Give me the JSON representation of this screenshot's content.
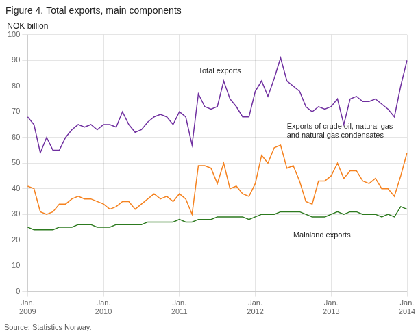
{
  "chart_data": {
    "type": "line",
    "title": "Figure 4. Total exports, main components",
    "ylabel": "NOK billion",
    "source": "Source: Statistics Norway.",
    "categories": [
      "Jan.\n2009",
      null,
      null,
      null,
      null,
      null,
      null,
      null,
      null,
      null,
      null,
      null,
      "Jan.\n2010",
      null,
      null,
      null,
      null,
      null,
      null,
      null,
      null,
      null,
      null,
      null,
      "Jan.\n2011",
      null,
      null,
      null,
      null,
      null,
      null,
      null,
      null,
      null,
      null,
      null,
      "Jan.\n2012",
      null,
      null,
      null,
      null,
      null,
      null,
      null,
      null,
      null,
      null,
      null,
      "Jan.\n2013",
      null,
      null,
      null,
      null,
      null,
      null,
      null,
      null,
      null,
      null,
      null,
      "Jan.\n2014"
    ],
    "series": [
      {
        "color": "#7030A0",
        "values": [
          68,
          65,
          54,
          60,
          55,
          55,
          60,
          63,
          65,
          64,
          65,
          63,
          65,
          65,
          64,
          70,
          65,
          62,
          63,
          66,
          68,
          69,
          68,
          65,
          70,
          68,
          57,
          77,
          72,
          71,
          72,
          82,
          75,
          72,
          68,
          68,
          78,
          82,
          76,
          83,
          91,
          82,
          80,
          78,
          72,
          70,
          72,
          71,
          72,
          75,
          65,
          75,
          76,
          74,
          74,
          75,
          73,
          71,
          68,
          80,
          90
        ]
      },
      {
        "color": "#F5821F",
        "values": [
          41,
          40,
          31,
          30,
          31,
          34,
          34,
          36,
          37,
          36,
          36,
          35,
          34,
          32,
          33,
          35,
          35,
          32,
          34,
          36,
          38,
          36,
          37,
          35,
          38,
          36,
          30,
          49,
          49,
          48,
          42,
          50,
          40,
          41,
          38,
          37,
          42,
          53,
          50,
          56,
          57,
          48,
          49,
          43,
          35,
          34,
          43,
          43,
          45,
          50,
          44,
          47,
          47,
          43,
          42,
          44,
          40,
          40,
          37,
          45,
          54
        ]
      },
      {
        "color": "#2D7A1F",
        "values": [
          25,
          24,
          24,
          24,
          24,
          25,
          25,
          25,
          26,
          26,
          26,
          25,
          25,
          25,
          26,
          26,
          26,
          26,
          26,
          27,
          27,
          27,
          27,
          27,
          28,
          27,
          27,
          28,
          28,
          28,
          29,
          29,
          29,
          29,
          29,
          28,
          29,
          30,
          30,
          30,
          31,
          31,
          31,
          31,
          30,
          29,
          29,
          29,
          30,
          31,
          30,
          31,
          31,
          30,
          30,
          30,
          29,
          30,
          29,
          33,
          32
        ]
      }
    ],
    "annotations": [
      {
        "text": "Total exports",
        "x": 27,
        "y": 85
      },
      {
        "text": "Exports of crude oil, natural gas\nand natural gas condensates",
        "x": 41,
        "y": 60
      },
      {
        "text": "Mainland exports",
        "x": 42,
        "y": 21
      }
    ],
    "ylim": [
      0,
      100
    ],
    "yticks": [
      0,
      10,
      20,
      30,
      40,
      50,
      60,
      70,
      80,
      90,
      100
    ],
    "grid": true
  }
}
